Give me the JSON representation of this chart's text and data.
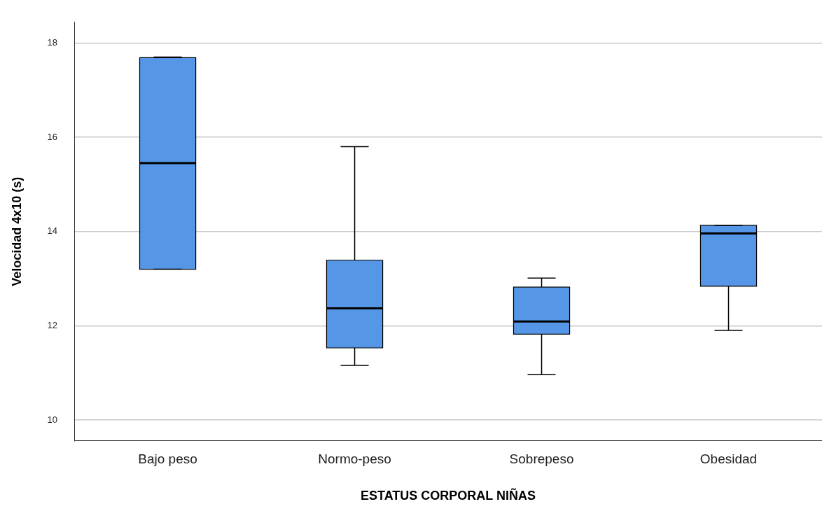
{
  "chart_data": {
    "type": "box",
    "xlabel": "ESTATUS CORPORAL NIÑAS",
    "ylabel": "Velocidad 4x10 (s)",
    "categories": [
      "Bajo peso",
      "Normo-peso",
      "Sobrepeso",
      "Obesidad"
    ],
    "color": "#5596e6",
    "boxes": [
      {
        "low": 13.2,
        "q1": 13.2,
        "median": 15.45,
        "q3": 17.69,
        "high": 17.7
      },
      {
        "low": 11.16,
        "q1": 11.53,
        "median": 12.37,
        "q3": 13.39,
        "high": 15.8
      },
      {
        "low": 10.96,
        "q1": 11.82,
        "median": 12.09,
        "q3": 12.82,
        "high": 13.01
      },
      {
        "low": 11.9,
        "q1": 12.84,
        "median": 13.96,
        "q3": 14.13,
        "high": 14.13
      }
    ],
    "ylim": [
      9.56,
      18.44
    ],
    "yticks": [
      10,
      12,
      14,
      16,
      18
    ],
    "grid": "y"
  }
}
